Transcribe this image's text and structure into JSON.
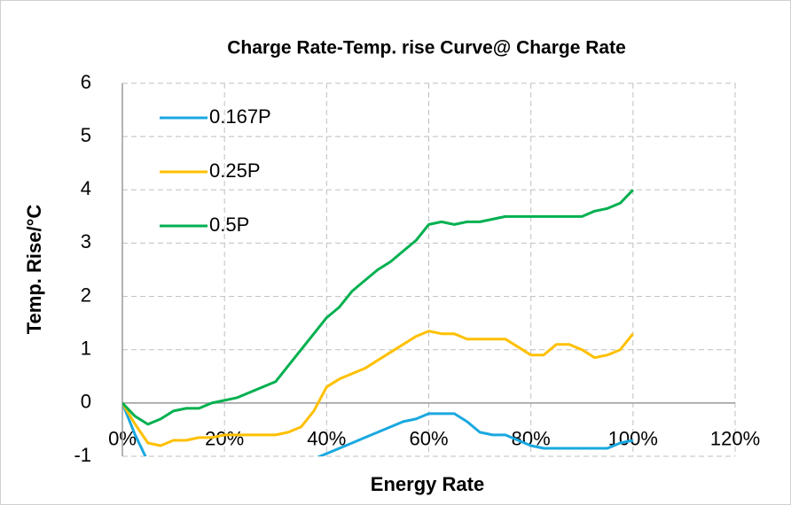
{
  "chart_data": {
    "type": "line",
    "title": "Charge Rate-Temp. rise Curve@ Charge Rate",
    "x_label": "Energy Rate",
    "y_label": "Temp. Rise/°C",
    "x": [
      0,
      2.5,
      5,
      7.5,
      10,
      12.5,
      15,
      17.5,
      20,
      22.5,
      25,
      27.5,
      30,
      32.5,
      35,
      37.5,
      40,
      42.5,
      45,
      47.5,
      50,
      52.5,
      55,
      57.5,
      60,
      62.5,
      65,
      67.5,
      70,
      72.5,
      75,
      77.5,
      80,
      82.5,
      85,
      87.5,
      90,
      92.5,
      95,
      97.5,
      100
    ],
    "series": [
      {
        "name": "0.167P",
        "color": "#1aa8e0",
        "values": [
          0,
          -0.6,
          -1.1,
          -1.2,
          -1.25,
          -1.25,
          -1.25,
          -1.25,
          -1.25,
          -1.25,
          -1.25,
          -1.25,
          -1.25,
          -1.2,
          -1.15,
          -1.05,
          -0.95,
          -0.85,
          -0.75,
          -0.65,
          -0.55,
          -0.45,
          -0.35,
          -0.3,
          -0.2,
          -0.2,
          -0.2,
          -0.35,
          -0.55,
          -0.6,
          -0.6,
          -0.7,
          -0.8,
          -0.85,
          -0.85,
          -0.85,
          -0.85,
          -0.85,
          -0.85,
          -0.75,
          -0.7
        ]
      },
      {
        "name": "0.25P",
        "color": "#ffc000",
        "values": [
          0,
          -0.4,
          -0.75,
          -0.8,
          -0.7,
          -0.7,
          -0.65,
          -0.65,
          -0.6,
          -0.6,
          -0.6,
          -0.6,
          -0.6,
          -0.55,
          -0.45,
          -0.15,
          0.3,
          0.45,
          0.55,
          0.65,
          0.8,
          0.95,
          1.1,
          1.25,
          1.35,
          1.3,
          1.3,
          1.2,
          1.2,
          1.2,
          1.2,
          1.05,
          0.9,
          0.9,
          1.1,
          1.1,
          1.0,
          0.85,
          0.9,
          1.0,
          1.3
        ]
      },
      {
        "name": "0.5P",
        "color": "#00b050",
        "values": [
          0,
          -0.25,
          -0.4,
          -0.3,
          -0.15,
          -0.1,
          -0.1,
          0,
          0.05,
          0.1,
          0.2,
          0.3,
          0.4,
          0.7,
          1.0,
          1.3,
          1.6,
          1.8,
          2.1,
          2.3,
          2.5,
          2.65,
          2.85,
          3.05,
          3.35,
          3.4,
          3.35,
          3.4,
          3.4,
          3.45,
          3.5,
          3.5,
          3.5,
          3.5,
          3.5,
          3.5,
          3.5,
          3.6,
          3.65,
          3.75,
          4.0
        ]
      }
    ],
    "xlim": [
      0,
      120
    ],
    "xticks": [
      {
        "value": 0,
        "label": "0%"
      },
      {
        "value": 20,
        "label": "20%"
      },
      {
        "value": 40,
        "label": "40%"
      },
      {
        "value": 60,
        "label": "60%"
      },
      {
        "value": 80,
        "label": "80%"
      },
      {
        "value": 100,
        "label": "100%"
      },
      {
        "value": 120,
        "label": "120%"
      }
    ],
    "ylim": [
      -1,
      6
    ],
    "yticks": [
      -1,
      0,
      1,
      2,
      3,
      4,
      5,
      6
    ],
    "grid": true,
    "legend": "upper-left"
  }
}
